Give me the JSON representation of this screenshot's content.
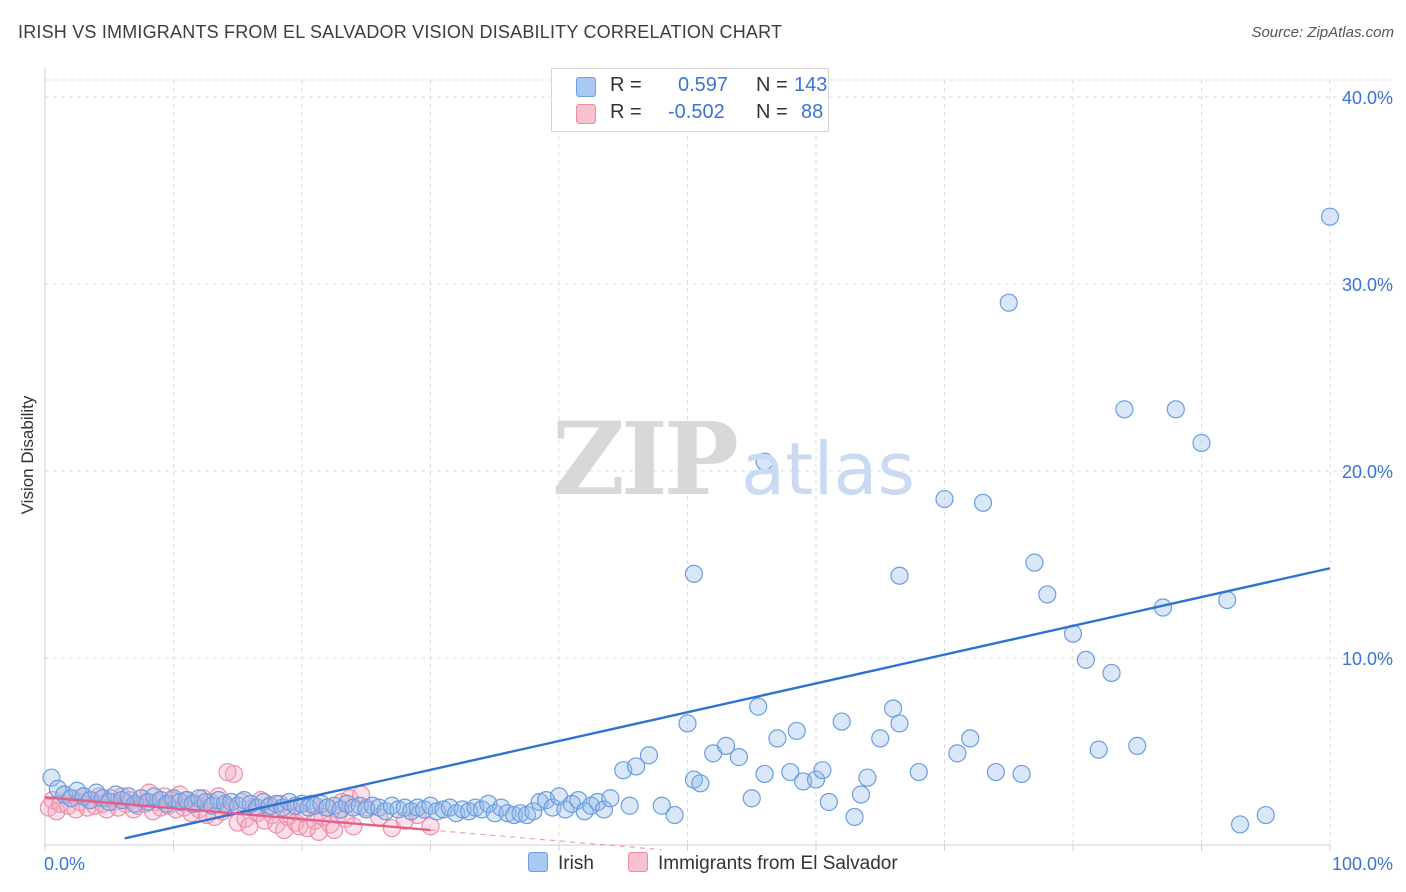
{
  "header": {
    "title": "IRISH VS IMMIGRANTS FROM EL SALVADOR VISION DISABILITY CORRELATION CHART",
    "source": "Source: ZipAtlas.com"
  },
  "watermark": {
    "zip": "ZIP",
    "atlas": "atlas"
  },
  "legend": {
    "rows": [
      {
        "r_label": "R =",
        "r_value": "0.597",
        "n_label": "N =",
        "n_value": "143",
        "color": "#a9c8f2",
        "border": "#6f9fe0"
      },
      {
        "r_label": "R =",
        "r_value": "-0.502",
        "n_label": "N =",
        "n_value": "88",
        "color": "#f8c1cf",
        "border": "#ec8ba6"
      }
    ]
  },
  "bottom_legend": [
    {
      "label": "Irish"
    },
    {
      "label": "Immigrants from El Salvador"
    }
  ],
  "colors": {
    "blue_fill": "rgba(146,186,236,0.35)",
    "blue_stroke": "#6b9de0",
    "blue_line": "#2f72d0",
    "pink_fill": "rgba(246,170,192,0.35)",
    "pink_stroke": "#ec8fab",
    "pink_line": "#e45f88",
    "tick_text": "#3b74d4",
    "grid": "#dcdcdc"
  },
  "chart_data": {
    "type": "scatter",
    "title": "IRISH VS IMMIGRANTS FROM EL SALVADOR VISION DISABILITY CORRELATION CHART",
    "xlabel": "",
    "ylabel": "Vision Disability",
    "xlim": [
      0,
      100
    ],
    "ylim": [
      0,
      40
    ],
    "x_tick_labels": [
      {
        "value": 0,
        "label": "0.0%"
      },
      {
        "value": 100,
        "label": "100.0%"
      }
    ],
    "y_ticks": [
      {
        "value": 10,
        "label": "10.0%"
      },
      {
        "value": 20,
        "label": "20.0%"
      },
      {
        "value": 30,
        "label": "30.0%"
      },
      {
        "value": 40,
        "label": "40.0%"
      }
    ],
    "grid": true,
    "series": [
      {
        "name": "Irish",
        "r": 0.597,
        "n": 143,
        "trend": {
          "x0": 0,
          "y0": -0.6,
          "x1": 100,
          "y1": 14.8
        },
        "points": [
          [
            0.5,
            3.6
          ],
          [
            1,
            3.0
          ],
          [
            1.5,
            2.7
          ],
          [
            2,
            2.5
          ],
          [
            2.5,
            2.9
          ],
          [
            3,
            2.6
          ],
          [
            3.5,
            2.4
          ],
          [
            4,
            2.8
          ],
          [
            4.5,
            2.5
          ],
          [
            5,
            2.3
          ],
          [
            5.5,
            2.7
          ],
          [
            6,
            2.4
          ],
          [
            6.5,
            2.6
          ],
          [
            7,
            2.2
          ],
          [
            7.5,
            2.5
          ],
          [
            8,
            2.3
          ],
          [
            8.5,
            2.6
          ],
          [
            9,
            2.4
          ],
          [
            9.5,
            2.2
          ],
          [
            10,
            2.5
          ],
          [
            10.5,
            2.3
          ],
          [
            11,
            2.4
          ],
          [
            11.5,
            2.2
          ],
          [
            12,
            2.5
          ],
          [
            12.5,
            2.3
          ],
          [
            13,
            2.1
          ],
          [
            13.5,
            2.4
          ],
          [
            14,
            2.2
          ],
          [
            14.5,
            2.3
          ],
          [
            15,
            2.1
          ],
          [
            15.5,
            2.4
          ],
          [
            16,
            2.2
          ],
          [
            16.5,
            2.0
          ],
          [
            17,
            2.3
          ],
          [
            17.5,
            2.1
          ],
          [
            18,
            2.2
          ],
          [
            18.5,
            2.0
          ],
          [
            19,
            2.3
          ],
          [
            19.5,
            2.1
          ],
          [
            20,
            2.2
          ],
          [
            20.5,
            2.0
          ],
          [
            21,
            2.1
          ],
          [
            21.5,
            2.2
          ],
          [
            22,
            2.0
          ],
          [
            22.5,
            2.1
          ],
          [
            23,
            1.9
          ],
          [
            23.5,
            2.2
          ],
          [
            24,
            2.0
          ],
          [
            24.5,
            2.1
          ],
          [
            25,
            1.9
          ],
          [
            25.5,
            2.1
          ],
          [
            26,
            2.0
          ],
          [
            26.5,
            1.8
          ],
          [
            27,
            2.1
          ],
          [
            27.5,
            1.9
          ],
          [
            28,
            2.0
          ],
          [
            28.5,
            1.8
          ],
          [
            29,
            2.0
          ],
          [
            29.5,
            1.9
          ],
          [
            30,
            2.1
          ],
          [
            30.5,
            1.8
          ],
          [
            31,
            1.9
          ],
          [
            31.5,
            2.0
          ],
          [
            32,
            1.7
          ],
          [
            32.5,
            1.9
          ],
          [
            33,
            1.8
          ],
          [
            33.5,
            2.0
          ],
          [
            34,
            1.9
          ],
          [
            34.5,
            2.2
          ],
          [
            35,
            1.7
          ],
          [
            35.5,
            2.0
          ],
          [
            36,
            1.7
          ],
          [
            36.5,
            1.6
          ],
          [
            37,
            1.7
          ],
          [
            37.5,
            1.6
          ],
          [
            38,
            1.8
          ],
          [
            38.5,
            2.3
          ],
          [
            39,
            2.4
          ],
          [
            39.5,
            2.0
          ],
          [
            40,
            2.6
          ],
          [
            40.5,
            1.9
          ],
          [
            41,
            2.2
          ],
          [
            41.5,
            2.4
          ],
          [
            42,
            1.8
          ],
          [
            42.5,
            2.1
          ],
          [
            43,
            2.3
          ],
          [
            43.5,
            1.9
          ],
          [
            44,
            2.5
          ],
          [
            45,
            4.0
          ],
          [
            45.5,
            2.1
          ],
          [
            46,
            4.2
          ],
          [
            47,
            4.8
          ],
          [
            48,
            2.1
          ],
          [
            49,
            1.6
          ],
          [
            50,
            6.5
          ],
          [
            50.5,
            3.5
          ],
          [
            51,
            3.3
          ],
          [
            52,
            4.9
          ],
          [
            53,
            5.3
          ],
          [
            54,
            4.7
          ],
          [
            55,
            2.5
          ],
          [
            55.5,
            7.4
          ],
          [
            56,
            3.8
          ],
          [
            57,
            5.7
          ],
          [
            58,
            3.9
          ],
          [
            58.5,
            6.1
          ],
          [
            59,
            3.4
          ],
          [
            60,
            3.5
          ],
          [
            60.5,
            4.0
          ],
          [
            61,
            2.3
          ],
          [
            62,
            6.6
          ],
          [
            63,
            1.5
          ],
          [
            63.5,
            2.7
          ],
          [
            64,
            3.6
          ],
          [
            65,
            5.7
          ],
          [
            66,
            7.3
          ],
          [
            66.5,
            6.5
          ],
          [
            68,
            3.9
          ],
          [
            70,
            18.5
          ],
          [
            71,
            4.9
          ],
          [
            72,
            5.7
          ],
          [
            73,
            18.3
          ],
          [
            74,
            3.9
          ],
          [
            75,
            29.0
          ],
          [
            76,
            3.8
          ],
          [
            77,
            15.1
          ],
          [
            78,
            13.4
          ],
          [
            80,
            11.3
          ],
          [
            81,
            9.9
          ],
          [
            82,
            5.1
          ],
          [
            83,
            9.2
          ],
          [
            84,
            23.3
          ],
          [
            85,
            5.3
          ],
          [
            87,
            12.7
          ],
          [
            88,
            23.3
          ],
          [
            90,
            21.5
          ],
          [
            92,
            13.1
          ],
          [
            93,
            1.1
          ],
          [
            95,
            1.6
          ],
          [
            100,
            33.6
          ],
          [
            50.5,
            14.5
          ],
          [
            56,
            20.5
          ],
          [
            66.5,
            14.4
          ]
        ]
      },
      {
        "name": "Immigrants from El Salvador",
        "r": -0.502,
        "n": 88,
        "trend": {
          "x0": 0,
          "y0": 2.55,
          "x1": 30,
          "y1": 0.8,
          "dash_to_x": 48
        },
        "points": [
          [
            0.3,
            2.0
          ],
          [
            0.6,
            2.4
          ],
          [
            0.9,
            1.8
          ],
          [
            1.2,
            2.2
          ],
          [
            1.5,
            2.7
          ],
          [
            1.8,
            2.1
          ],
          [
            2.1,
            2.5
          ],
          [
            2.4,
            1.9
          ],
          [
            2.7,
            2.3
          ],
          [
            3,
            2.6
          ],
          [
            3.3,
            2.0
          ],
          [
            3.6,
            2.4
          ],
          [
            3.9,
            2.1
          ],
          [
            4.2,
            2.6
          ],
          [
            4.5,
            2.2
          ],
          [
            4.8,
            1.9
          ],
          [
            5.1,
            2.5
          ],
          [
            5.4,
            2.3
          ],
          [
            5.7,
            2.0
          ],
          [
            6,
            2.6
          ],
          [
            6.3,
            2.2
          ],
          [
            6.6,
            2.4
          ],
          [
            6.9,
            1.9
          ],
          [
            7.2,
            2.1
          ],
          [
            7.5,
            2.5
          ],
          [
            7.8,
            2.2
          ],
          [
            8.1,
            2.8
          ],
          [
            8.4,
            1.8
          ],
          [
            8.7,
            2.3
          ],
          [
            9,
            2.0
          ],
          [
            9.3,
            2.6
          ],
          [
            9.6,
            2.1
          ],
          [
            9.9,
            2.4
          ],
          [
            10.2,
            1.9
          ],
          [
            10.5,
            2.7
          ],
          [
            10.8,
            2.0
          ],
          [
            11.1,
            2.4
          ],
          [
            11.4,
            1.7
          ],
          [
            11.7,
            2.2
          ],
          [
            12,
            1.9
          ],
          [
            12.3,
            2.5
          ],
          [
            12.6,
            1.6
          ],
          [
            12.9,
            2.3
          ],
          [
            13.2,
            1.5
          ],
          [
            13.5,
            2.6
          ],
          [
            13.8,
            1.8
          ],
          [
            14.1,
            2.1
          ],
          [
            14.4,
            2.0
          ],
          [
            14.7,
            3.8
          ],
          [
            15,
            1.2
          ],
          [
            15.3,
            2.3
          ],
          [
            15.6,
            1.4
          ],
          [
            15.9,
            1.0
          ],
          [
            16.2,
            2.0
          ],
          [
            16.5,
            1.7
          ],
          [
            16.8,
            2.4
          ],
          [
            17.1,
            1.3
          ],
          [
            17.4,
            2.0
          ],
          [
            17.7,
            1.6
          ],
          [
            18,
            1.1
          ],
          [
            18.3,
            2.2
          ],
          [
            18.6,
            0.8
          ],
          [
            18.9,
            1.5
          ],
          [
            19.2,
            1.9
          ],
          [
            19.5,
            1.2
          ],
          [
            19.8,
            1.0
          ],
          [
            20.1,
            1.7
          ],
          [
            20.4,
            0.9
          ],
          [
            20.7,
            2.2
          ],
          [
            21,
            1.3
          ],
          [
            21.3,
            0.7
          ],
          [
            21.6,
            1.5
          ],
          [
            21.9,
            2.0
          ],
          [
            22.2,
            1.1
          ],
          [
            22.5,
            0.8
          ],
          [
            22.8,
            1.6
          ],
          [
            23.1,
            2.3
          ],
          [
            23.4,
            1.4
          ],
          [
            23.7,
            2.5
          ],
          [
            24,
            1.0
          ],
          [
            25,
            2.0
          ],
          [
            26,
            1.5
          ],
          [
            27,
            0.9
          ],
          [
            28,
            1.3
          ],
          [
            29,
            1.6
          ],
          [
            30,
            1.0
          ],
          [
            14.2,
            3.9
          ],
          [
            24.6,
            2.7
          ]
        ]
      }
    ]
  }
}
